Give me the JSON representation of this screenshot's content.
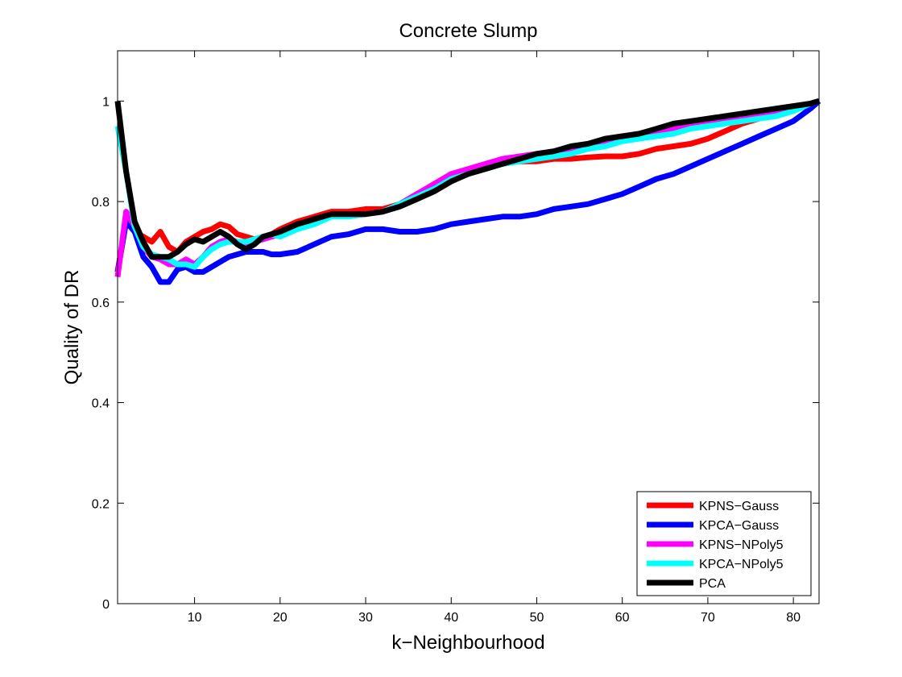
{
  "chart_data": {
    "type": "line",
    "title": "Concrete Slump",
    "xlabel": "k−Neighbourhood",
    "ylabel": "Quality of DR",
    "xlim": [
      1,
      83
    ],
    "ylim": [
      0,
      1.1
    ],
    "xticks": [
      10,
      20,
      30,
      40,
      50,
      60,
      70,
      80
    ],
    "yticks": [
      0,
      0.2,
      0.4,
      0.6,
      0.8,
      1
    ],
    "ytick_labels": [
      "0",
      "0.2",
      "0.4",
      "0.6",
      "0.8",
      "1"
    ],
    "legend_position": "bottom-right",
    "grid": false,
    "series": [
      {
        "name": "KPNS−Gauss",
        "color": "#ff0000",
        "x": [
          1,
          2,
          3,
          4,
          5,
          6,
          7,
          8,
          9,
          10,
          11,
          12,
          13,
          14,
          15,
          16,
          17,
          18,
          19,
          20,
          22,
          24,
          26,
          28,
          30,
          32,
          34,
          36,
          38,
          40,
          42,
          44,
          46,
          48,
          50,
          52,
          54,
          56,
          58,
          60,
          62,
          64,
          66,
          68,
          70,
          72,
          74,
          76,
          78,
          80,
          82,
          83
        ],
        "y": [
          0.66,
          0.76,
          0.74,
          0.73,
          0.72,
          0.74,
          0.71,
          0.7,
          0.72,
          0.73,
          0.74,
          0.745,
          0.755,
          0.75,
          0.735,
          0.73,
          0.725,
          0.73,
          0.735,
          0.745,
          0.76,
          0.77,
          0.78,
          0.78,
          0.785,
          0.785,
          0.795,
          0.815,
          0.83,
          0.845,
          0.86,
          0.87,
          0.875,
          0.88,
          0.88,
          0.885,
          0.885,
          0.888,
          0.89,
          0.89,
          0.895,
          0.905,
          0.91,
          0.915,
          0.925,
          0.94,
          0.955,
          0.965,
          0.975,
          0.985,
          0.995,
          1.0
        ]
      },
      {
        "name": "KPCA−Gauss",
        "color": "#0000ff",
        "x": [
          1,
          2,
          3,
          4,
          5,
          6,
          7,
          8,
          9,
          10,
          11,
          12,
          13,
          14,
          15,
          16,
          17,
          18,
          19,
          20,
          22,
          24,
          26,
          28,
          30,
          32,
          34,
          36,
          38,
          40,
          42,
          44,
          46,
          48,
          50,
          52,
          54,
          56,
          58,
          60,
          62,
          64,
          66,
          68,
          70,
          72,
          74,
          76,
          78,
          80,
          82,
          83
        ],
        "y": [
          0.66,
          0.76,
          0.74,
          0.69,
          0.67,
          0.64,
          0.64,
          0.665,
          0.67,
          0.66,
          0.66,
          0.67,
          0.68,
          0.69,
          0.695,
          0.7,
          0.7,
          0.7,
          0.695,
          0.695,
          0.7,
          0.715,
          0.73,
          0.735,
          0.745,
          0.745,
          0.74,
          0.74,
          0.745,
          0.755,
          0.76,
          0.765,
          0.77,
          0.77,
          0.775,
          0.785,
          0.79,
          0.795,
          0.805,
          0.815,
          0.83,
          0.845,
          0.855,
          0.87,
          0.885,
          0.9,
          0.915,
          0.93,
          0.945,
          0.96,
          0.985,
          1.0
        ]
      },
      {
        "name": "KPNS−NPoly5",
        "color": "#ff00ff",
        "x": [
          1,
          2,
          3,
          4,
          5,
          6,
          7,
          8,
          9,
          10,
          11,
          12,
          13,
          14,
          15,
          16,
          17,
          18,
          19,
          20,
          22,
          24,
          26,
          28,
          30,
          32,
          34,
          36,
          38,
          40,
          42,
          44,
          46,
          48,
          50,
          52,
          54,
          56,
          58,
          60,
          62,
          64,
          66,
          68,
          70,
          72,
          74,
          76,
          78,
          80,
          82,
          83
        ],
        "y": [
          0.65,
          0.78,
          0.75,
          0.71,
          0.69,
          0.685,
          0.675,
          0.675,
          0.685,
          0.675,
          0.69,
          0.71,
          0.72,
          0.725,
          0.72,
          0.715,
          0.72,
          0.725,
          0.73,
          0.735,
          0.75,
          0.76,
          0.775,
          0.775,
          0.775,
          0.78,
          0.795,
          0.815,
          0.835,
          0.855,
          0.865,
          0.875,
          0.885,
          0.89,
          0.895,
          0.9,
          0.905,
          0.91,
          0.92,
          0.925,
          0.93,
          0.94,
          0.945,
          0.95,
          0.955,
          0.96,
          0.965,
          0.97,
          0.975,
          0.98,
          0.995,
          1.0
        ]
      },
      {
        "name": "KPCA−NPoly5",
        "color": "#00ffff",
        "x": [
          1,
          2,
          3,
          4,
          5,
          6,
          7,
          8,
          9,
          10,
          11,
          12,
          13,
          14,
          15,
          16,
          17,
          18,
          19,
          20,
          22,
          24,
          26,
          28,
          30,
          32,
          34,
          36,
          38,
          40,
          42,
          44,
          46,
          48,
          50,
          52,
          54,
          56,
          58,
          60,
          62,
          64,
          66,
          68,
          70,
          72,
          74,
          76,
          78,
          80,
          82,
          83
        ],
        "y": [
          0.95,
          0.86,
          0.75,
          0.71,
          0.695,
          0.69,
          0.685,
          0.675,
          0.675,
          0.67,
          0.69,
          0.705,
          0.715,
          0.72,
          0.72,
          0.72,
          0.725,
          0.73,
          0.735,
          0.73,
          0.745,
          0.755,
          0.77,
          0.77,
          0.775,
          0.78,
          0.795,
          0.81,
          0.825,
          0.845,
          0.855,
          0.865,
          0.875,
          0.88,
          0.885,
          0.89,
          0.895,
          0.905,
          0.91,
          0.92,
          0.925,
          0.93,
          0.935,
          0.945,
          0.95,
          0.955,
          0.96,
          0.965,
          0.97,
          0.98,
          0.995,
          1.0
        ]
      },
      {
        "name": "PCA",
        "color": "#000000",
        "x": [
          1,
          2,
          3,
          4,
          5,
          6,
          7,
          8,
          9,
          10,
          11,
          12,
          13,
          14,
          15,
          16,
          17,
          18,
          19,
          20,
          22,
          24,
          26,
          28,
          30,
          32,
          34,
          36,
          38,
          40,
          42,
          44,
          46,
          48,
          50,
          52,
          54,
          56,
          58,
          60,
          62,
          64,
          66,
          68,
          70,
          72,
          74,
          76,
          78,
          80,
          82,
          83
        ],
        "y": [
          1.0,
          0.86,
          0.76,
          0.72,
          0.69,
          0.69,
          0.69,
          0.7,
          0.715,
          0.725,
          0.72,
          0.73,
          0.74,
          0.73,
          0.715,
          0.705,
          0.715,
          0.73,
          0.735,
          0.74,
          0.755,
          0.765,
          0.775,
          0.775,
          0.775,
          0.78,
          0.79,
          0.805,
          0.82,
          0.84,
          0.855,
          0.865,
          0.875,
          0.885,
          0.895,
          0.9,
          0.91,
          0.915,
          0.925,
          0.93,
          0.935,
          0.945,
          0.955,
          0.96,
          0.965,
          0.97,
          0.975,
          0.98,
          0.985,
          0.99,
          0.995,
          1.0
        ]
      }
    ]
  }
}
